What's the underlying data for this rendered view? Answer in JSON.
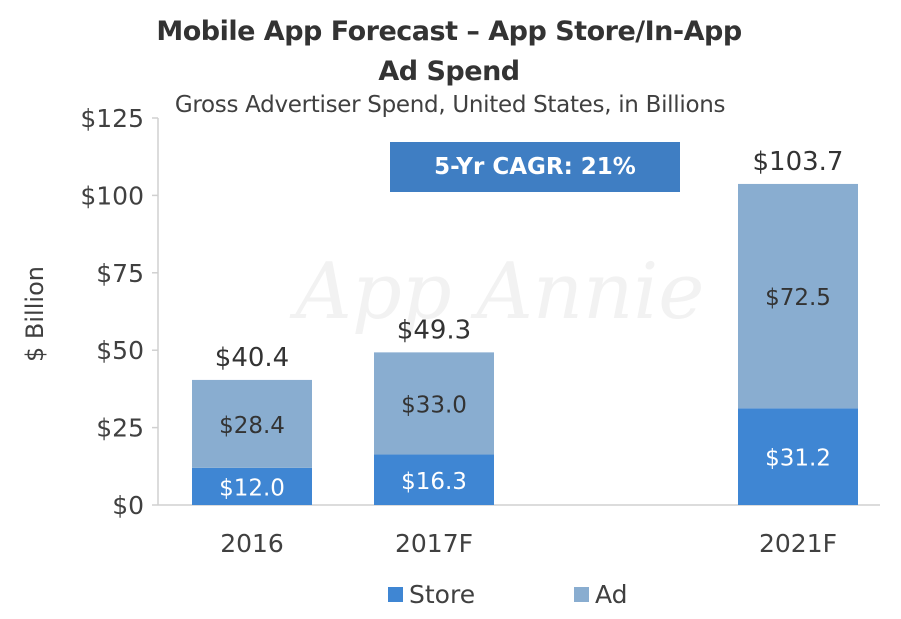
{
  "chart_data": {
    "type": "bar",
    "stacked": true,
    "title": "Mobile App Forecast – App Store/In-App Ad Spend",
    "title_line1": "Mobile App Forecast – App Store/In-App",
    "title_line2": "Ad Spend",
    "subtitle": "Gross Advertiser Spend, United States, in Billions",
    "ylabel": "$ Billion",
    "xlabel": "",
    "ylim": [
      0,
      125
    ],
    "yticks": [
      0,
      25,
      50,
      75,
      100,
      125
    ],
    "ytick_labels": [
      "$0",
      "$25",
      "$50",
      "$75",
      "$100",
      "$125"
    ],
    "categories": [
      "2016",
      "2017F",
      "2021F"
    ],
    "series": [
      {
        "name": "Store",
        "values": [
          12.0,
          16.3,
          31.2
        ],
        "labels": [
          "$12.0",
          "$16.3",
          "$31.2"
        ],
        "color": "#3f86d3"
      },
      {
        "name": "Ad",
        "values": [
          28.4,
          33.0,
          72.5
        ],
        "labels": [
          "$28.4",
          "$33.0",
          "$72.5"
        ],
        "color": "#89add0"
      }
    ],
    "totals": [
      40.4,
      49.3,
      103.7
    ],
    "total_labels": [
      "$40.4",
      "$49.3",
      "$103.7"
    ],
    "annotation": "5-Yr CAGR: 21%",
    "legend_position": "bottom",
    "grid": false,
    "watermark": "App Annie"
  }
}
